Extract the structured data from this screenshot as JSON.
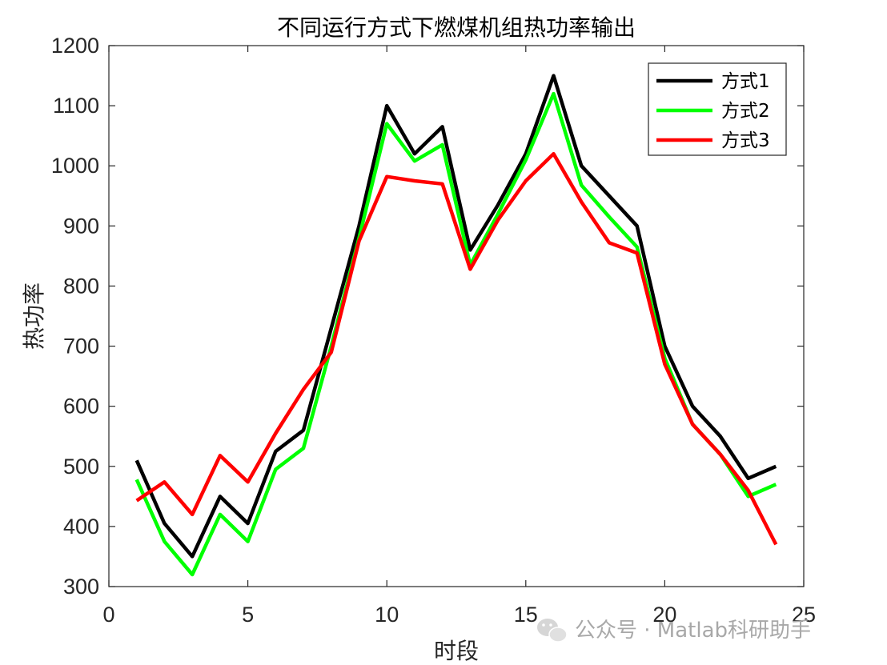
{
  "chart_data": {
    "type": "line",
    "title": "不同运行方式下燃煤机组热功率输出",
    "xlabel": "时段",
    "ylabel": "热功率",
    "xlim": [
      0,
      25
    ],
    "ylim": [
      300,
      1200
    ],
    "xticks": [
      0,
      5,
      10,
      15,
      20,
      25
    ],
    "yticks": [
      300,
      400,
      500,
      600,
      700,
      800,
      900,
      1000,
      1100,
      1200
    ],
    "grid": false,
    "legend_position": "top-right",
    "x": [
      1,
      2,
      3,
      4,
      5,
      6,
      7,
      8,
      9,
      10,
      11,
      12,
      13,
      14,
      15,
      16,
      17,
      18,
      19,
      20,
      21,
      22,
      23,
      24
    ],
    "series": [
      {
        "name": "方式1",
        "color": "#000000",
        "values": [
          510,
          405,
          350,
          450,
          405,
          525,
          560,
          730,
          900,
          1100,
          1020,
          1065,
          860,
          935,
          1020,
          1150,
          1000,
          950,
          900,
          700,
          600,
          550,
          480,
          500
        ]
      },
      {
        "name": "方式2",
        "color": "#00ff00",
        "values": [
          478,
          375,
          320,
          420,
          375,
          495,
          530,
          700,
          880,
          1070,
          1008,
          1035,
          835,
          920,
          1010,
          1120,
          968,
          915,
          865,
          680,
          570,
          520,
          450,
          470
        ]
      },
      {
        "name": "方式3",
        "color": "#ff0000",
        "values": [
          443,
          474,
          420,
          518,
          474,
          555,
          628,
          690,
          875,
          982,
          975,
          970,
          828,
          910,
          975,
          1020,
          940,
          872,
          855,
          670,
          570,
          520,
          460,
          370
        ]
      }
    ]
  },
  "watermark": {
    "text": "公众号 · Matlab科研助手",
    "icon": "wechat-icon"
  }
}
